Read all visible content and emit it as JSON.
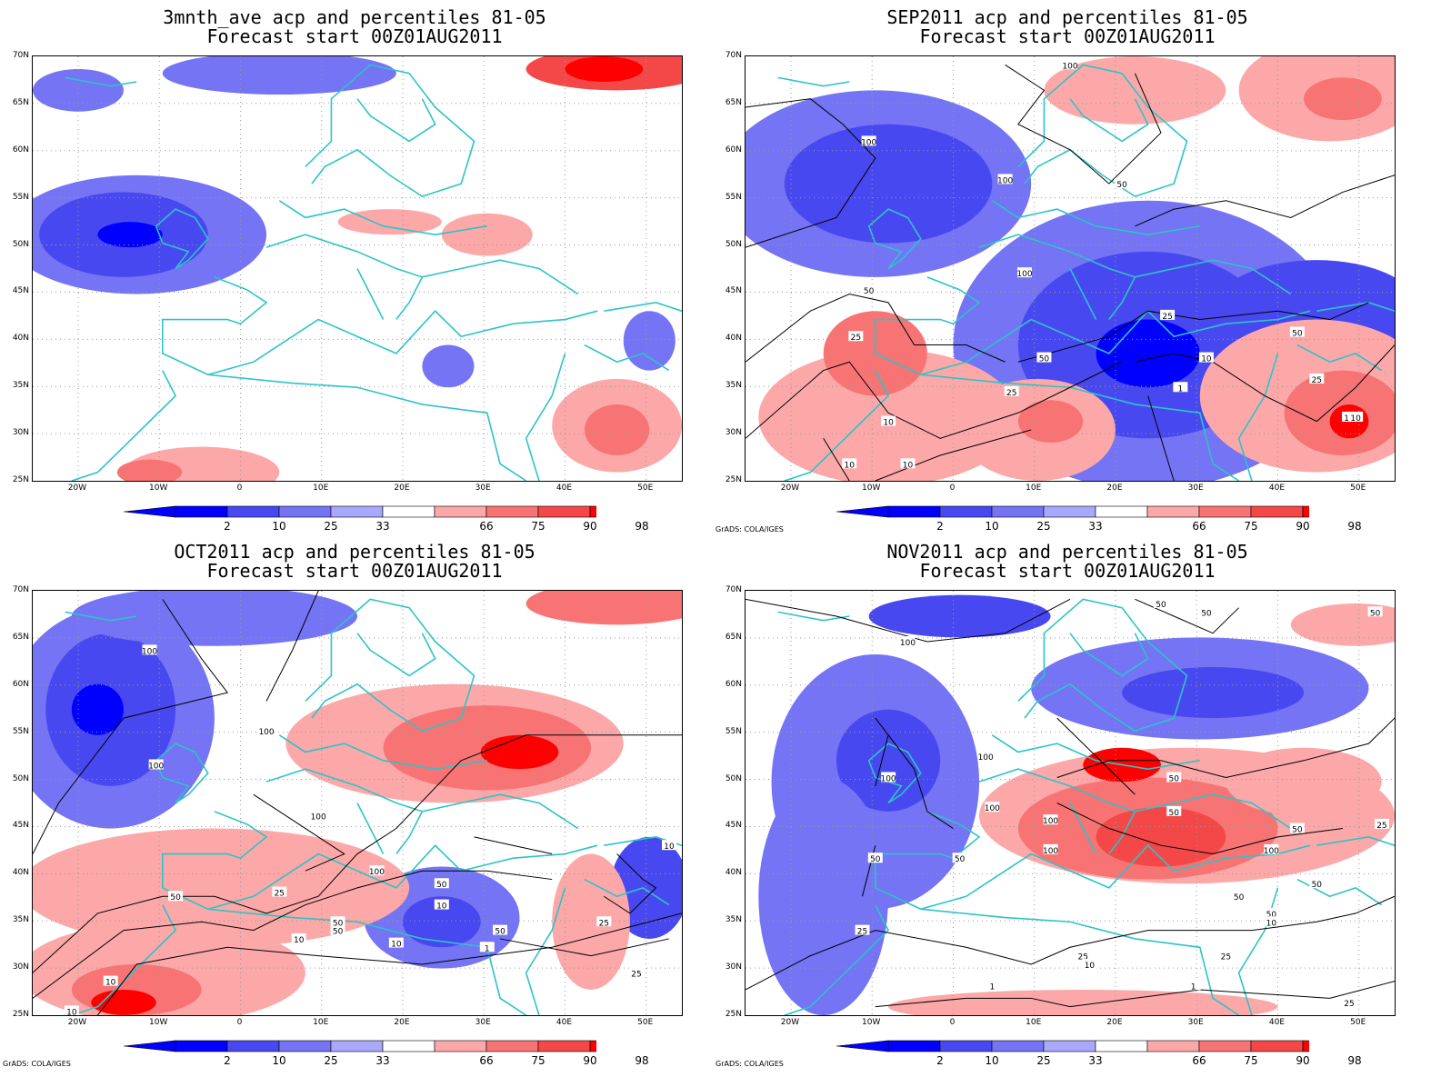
{
  "panels": [
    {
      "title1": "3mnth_ave acp and percentiles 81-05",
      "title2": "Forecast start 00Z01AUG2011",
      "contour_labels": [],
      "credit": ""
    },
    {
      "title1": "SEP2011 acp and percentiles 81-05",
      "title2": "Forecast start 00Z01AUG2011",
      "contour_labels": [
        "100",
        "100",
        "100",
        "100",
        "50",
        "50",
        "25",
        "10",
        "25",
        "50",
        "10",
        "1",
        "25",
        "25",
        "10",
        "10",
        "10",
        "50",
        "10"
      ],
      "credit": "GrADS: COLA/IGES"
    },
    {
      "title1": "OCT2011 acp and percentiles 81-05",
      "title2": "Forecast start 00Z01AUG2011",
      "contour_labels": [
        "100",
        "100",
        "100",
        "100",
        "100",
        "50",
        "50",
        "50",
        "50",
        "25",
        "10",
        "10",
        "10",
        "25",
        "10",
        "50",
        "10",
        "1",
        "10",
        "25"
      ],
      "credit": "GrADS: COLA/IGES"
    },
    {
      "title1": "NOV2011 acp and percentiles 81-05",
      "title2": "Forecast start 00Z01AUG2011",
      "contour_labels": [
        "50",
        "50",
        "50",
        "100",
        "100",
        "100",
        "100",
        "100",
        "100",
        "50",
        "50",
        "50",
        "100",
        "50",
        "50",
        "50",
        "50",
        "25",
        "50",
        "10",
        "25",
        "25",
        "10",
        "1",
        "1",
        "25",
        "25"
      ],
      "credit": "GrADS: COLA/IGES"
    }
  ],
  "lat_labels": [
    "70N",
    "65N",
    "60N",
    "55N",
    "50N",
    "45N",
    "40N",
    "35N",
    "30N",
    "25N"
  ],
  "lon_labels": [
    "20W",
    "10W",
    "0",
    "10E",
    "20E",
    "30E",
    "40E",
    "50E"
  ],
  "colorbar": {
    "labels": [
      "2",
      "10",
      "25",
      "33",
      "66",
      "75",
      "90",
      "98"
    ],
    "colors_blue": [
      "#0000ff",
      "#4848f0",
      "#7474f4",
      "#a8a8fc"
    ],
    "colors_red": [
      "#fca8a8",
      "#f87474",
      "#f44848",
      "#ff0000"
    ]
  },
  "colors": {
    "coastline": "#2cc4c8",
    "contour": "#000000",
    "grid": "#999999"
  }
}
